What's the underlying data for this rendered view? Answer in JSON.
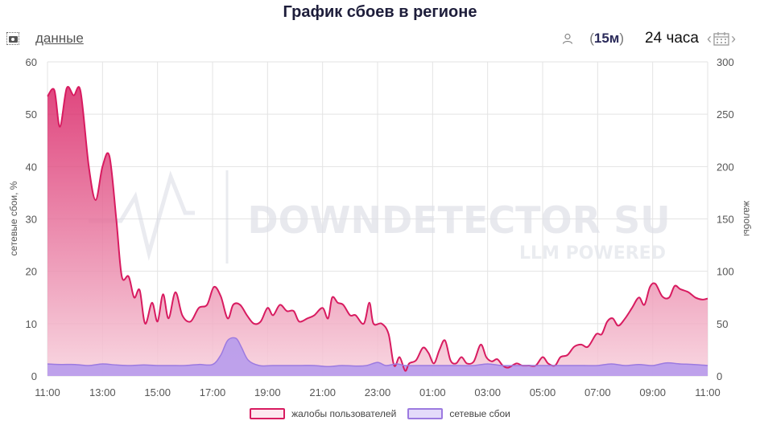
{
  "title": "График сбоев в регионе",
  "toolbar": {
    "data_link": "данные",
    "interval_label": "15м",
    "period_label": "24 часа"
  },
  "watermark": {
    "line1": "DOWNDETECTOR SU",
    "line2": "LLM POWERED"
  },
  "colors": {
    "complaints_line": "#d81b60",
    "complaints_fill_top": "#d81b60",
    "complaints_fill_bottom": "#f7d0dc",
    "outages_line": "#9c7ae0",
    "outages_fill": "#b79bec",
    "grid": "#e3e3e3"
  },
  "chart_data": {
    "type": "area",
    "title": "График сбоев в регионе",
    "x_axis": {
      "ticks": [
        "11:00",
        "13:00",
        "15:00",
        "17:00",
        "19:00",
        "21:00",
        "23:00",
        "01:00",
        "03:00",
        "05:00",
        "07:00",
        "09:00",
        "11:00"
      ],
      "range_hours": [
        0,
        24
      ]
    },
    "y_left": {
      "label": "сетевые сбои, %",
      "range": [
        0,
        60
      ],
      "ticks": [
        0,
        10,
        20,
        30,
        40,
        50,
        60
      ]
    },
    "y_right": {
      "label": "жалобы",
      "range": [
        0,
        300
      ],
      "ticks": [
        0,
        50,
        100,
        150,
        200,
        250,
        300
      ]
    },
    "grid": true,
    "legend_position": "bottom",
    "series": [
      {
        "name": "жалобы пользователей",
        "axis": "right",
        "points": [
          [
            0,
            267
          ],
          [
            0.25,
            273
          ],
          [
            0.45,
            238
          ],
          [
            0.7,
            275
          ],
          [
            0.95,
            268
          ],
          [
            1.2,
            272
          ],
          [
            1.5,
            200
          ],
          [
            1.75,
            168
          ],
          [
            2.0,
            200
          ],
          [
            2.25,
            210
          ],
          [
            2.5,
            150
          ],
          [
            2.7,
            95
          ],
          [
            2.95,
            95
          ],
          [
            3.15,
            75
          ],
          [
            3.35,
            82
          ],
          [
            3.55,
            50
          ],
          [
            3.8,
            70
          ],
          [
            4.0,
            52
          ],
          [
            4.2,
            78
          ],
          [
            4.4,
            55
          ],
          [
            4.65,
            80
          ],
          [
            4.9,
            58
          ],
          [
            5.2,
            52
          ],
          [
            5.5,
            65
          ],
          [
            5.8,
            68
          ],
          [
            6.05,
            85
          ],
          [
            6.3,
            76
          ],
          [
            6.55,
            55
          ],
          [
            6.75,
            68
          ],
          [
            7.0,
            68
          ],
          [
            7.25,
            58
          ],
          [
            7.5,
            50
          ],
          [
            7.75,
            52
          ],
          [
            8.0,
            65
          ],
          [
            8.2,
            58
          ],
          [
            8.45,
            68
          ],
          [
            8.7,
            62
          ],
          [
            8.95,
            62
          ],
          [
            9.15,
            52
          ],
          [
            9.45,
            55
          ],
          [
            9.7,
            58
          ],
          [
            10.0,
            65
          ],
          [
            10.2,
            55
          ],
          [
            10.35,
            75
          ],
          [
            10.55,
            70
          ],
          [
            10.75,
            68
          ],
          [
            11.0,
            58
          ],
          [
            11.2,
            58
          ],
          [
            11.5,
            50
          ],
          [
            11.7,
            70
          ],
          [
            11.85,
            50
          ],
          [
            12.15,
            50
          ],
          [
            12.4,
            40
          ],
          [
            12.6,
            10
          ],
          [
            12.8,
            18
          ],
          [
            13.0,
            5
          ],
          [
            13.15,
            12
          ],
          [
            13.4,
            15
          ],
          [
            13.65,
            27
          ],
          [
            13.85,
            22
          ],
          [
            14.05,
            12
          ],
          [
            14.25,
            25
          ],
          [
            14.45,
            34
          ],
          [
            14.65,
            15
          ],
          [
            14.85,
            12
          ],
          [
            15.05,
            18
          ],
          [
            15.25,
            12
          ],
          [
            15.5,
            14
          ],
          [
            15.75,
            30
          ],
          [
            15.95,
            18
          ],
          [
            16.15,
            14
          ],
          [
            16.35,
            16
          ],
          [
            16.55,
            10
          ],
          [
            16.75,
            8
          ],
          [
            17.05,
            12
          ],
          [
            17.25,
            10
          ],
          [
            17.5,
            10
          ],
          [
            17.75,
            10
          ],
          [
            18.0,
            18
          ],
          [
            18.2,
            12
          ],
          [
            18.45,
            10
          ],
          [
            18.65,
            18
          ],
          [
            18.9,
            20
          ],
          [
            19.15,
            28
          ],
          [
            19.4,
            30
          ],
          [
            19.65,
            28
          ],
          [
            19.95,
            40
          ],
          [
            20.15,
            40
          ],
          [
            20.35,
            52
          ],
          [
            20.55,
            55
          ],
          [
            20.75,
            48
          ],
          [
            21.0,
            55
          ],
          [
            21.25,
            65
          ],
          [
            21.5,
            75
          ],
          [
            21.7,
            68
          ],
          [
            21.9,
            85
          ],
          [
            22.1,
            88
          ],
          [
            22.35,
            76
          ],
          [
            22.6,
            75
          ],
          [
            22.8,
            86
          ],
          [
            23.0,
            83
          ],
          [
            23.3,
            80
          ],
          [
            23.55,
            75
          ],
          [
            23.8,
            73
          ],
          [
            24.0,
            74
          ]
        ]
      },
      {
        "name": "сетевые сбои",
        "axis": "left",
        "points": [
          [
            0,
            2.3
          ],
          [
            0.5,
            2.2
          ],
          [
            1.0,
            2.2
          ],
          [
            1.5,
            2.0
          ],
          [
            2.0,
            2.3
          ],
          [
            2.5,
            2.1
          ],
          [
            3.0,
            2.0
          ],
          [
            3.5,
            2.1
          ],
          [
            4.0,
            2.0
          ],
          [
            4.5,
            2.0
          ],
          [
            5.0,
            2.0
          ],
          [
            5.5,
            2.2
          ],
          [
            6.0,
            2.2
          ],
          [
            6.3,
            4.0
          ],
          [
            6.55,
            6.8
          ],
          [
            6.85,
            7.2
          ],
          [
            7.05,
            5.5
          ],
          [
            7.3,
            3.0
          ],
          [
            7.7,
            2.0
          ],
          [
            8.2,
            2.0
          ],
          [
            8.7,
            2.0
          ],
          [
            9.2,
            2.0
          ],
          [
            9.7,
            2.0
          ],
          [
            10.2,
            1.8
          ],
          [
            10.7,
            2.0
          ],
          [
            11.2,
            1.9
          ],
          [
            11.6,
            2.0
          ],
          [
            12.0,
            2.6
          ],
          [
            12.3,
            2.0
          ],
          [
            12.7,
            2.3
          ],
          [
            13.0,
            2.0
          ],
          [
            13.5,
            2.0
          ],
          [
            14.0,
            2.0
          ],
          [
            14.5,
            2.0
          ],
          [
            15.0,
            2.0
          ],
          [
            15.5,
            2.0
          ],
          [
            16.0,
            2.3
          ],
          [
            16.5,
            2.0
          ],
          [
            17.0,
            2.0
          ],
          [
            17.5,
            2.0
          ],
          [
            18.0,
            2.0
          ],
          [
            18.5,
            2.0
          ],
          [
            19.0,
            2.0
          ],
          [
            19.5,
            2.0
          ],
          [
            20.0,
            2.0
          ],
          [
            20.5,
            2.3
          ],
          [
            21.0,
            2.0
          ],
          [
            21.5,
            2.2
          ],
          [
            22.0,
            2.0
          ],
          [
            22.5,
            2.5
          ],
          [
            23.0,
            2.3
          ],
          [
            23.5,
            2.2
          ],
          [
            24.0,
            2.0
          ]
        ]
      }
    ]
  }
}
